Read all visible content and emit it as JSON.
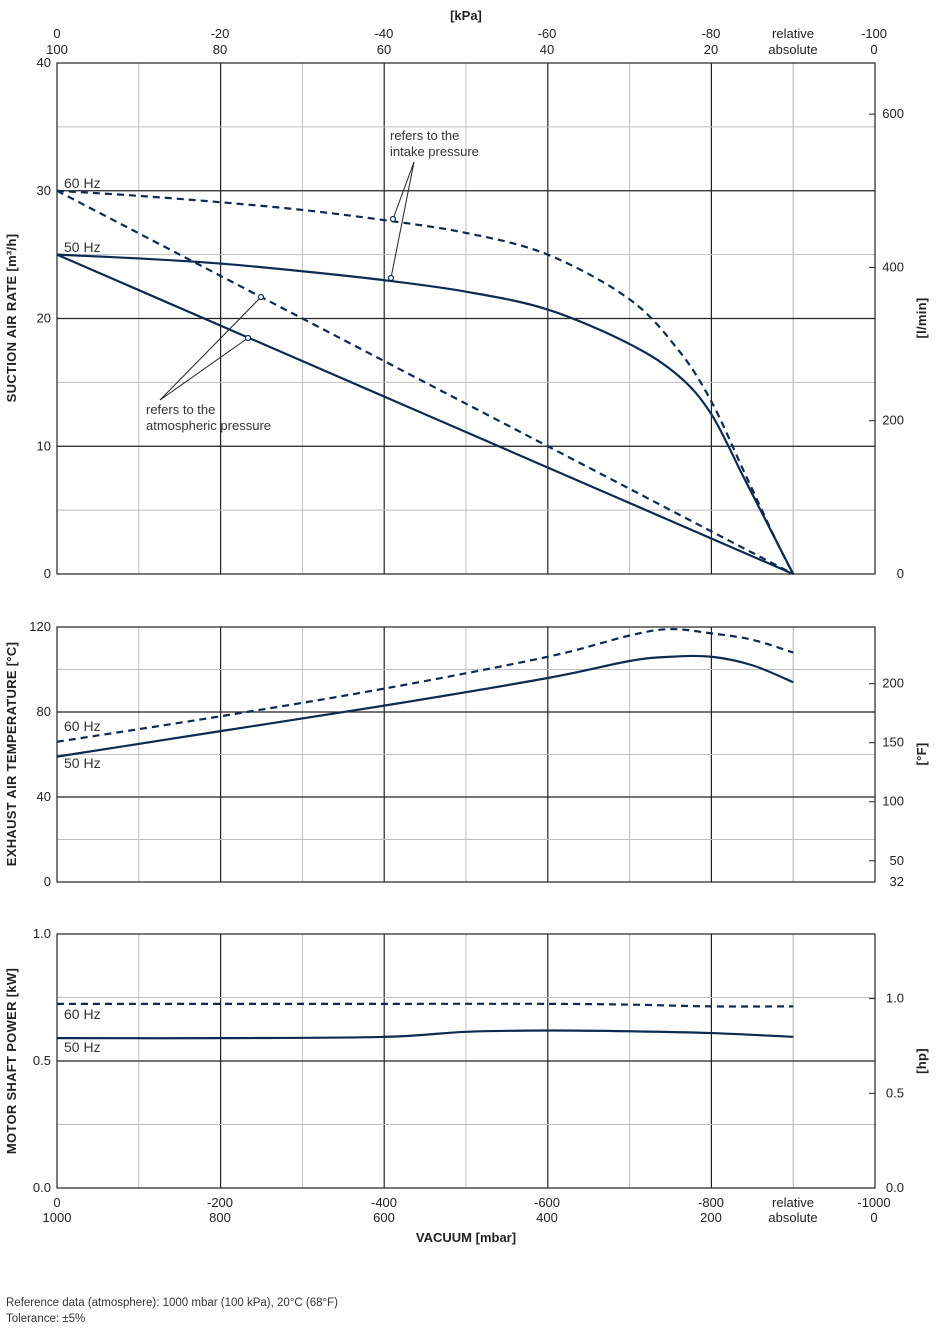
{
  "colors": {
    "curve": "#0d2b52",
    "grid_major": "#222222",
    "grid_minor": "#bfbfbf"
  },
  "top_axis": {
    "unit": "[kPa]",
    "relative_labels": [
      "0",
      "-20",
      "-40",
      "-60",
      "-80",
      "relative",
      "-100"
    ],
    "absolute_labels": [
      "100",
      "80",
      "60",
      "40",
      "20",
      "absolute",
      "0"
    ]
  },
  "bottom_axis": {
    "title": "VACUUM  [mbar]",
    "relative_labels": [
      "0",
      "-200",
      "-400",
      "-600",
      "-800",
      "relative",
      "-1000"
    ],
    "absolute_labels": [
      "1000",
      "800",
      "600",
      "400",
      "200",
      "absolute",
      "0"
    ]
  },
  "labels": {
    "hz60": "60 Hz",
    "hz50": "50 Hz"
  },
  "annotations": {
    "intake_1": "refers to the",
    "intake_2": "intake pressure",
    "atm_1": "refers to the",
    "atm_2": "atmospheric pressure"
  },
  "footer": {
    "reference": "Reference data (atmosphere): 1000 mbar (100 kPa), 20°C (68°F)",
    "tolerance": "Tolerance: ±5%"
  },
  "chart_data": [
    {
      "type": "line",
      "title": "Suction air rate",
      "xlabel": "VACUUM [mbar]",
      "ylabel": "SUCTION AIR RATE  [m³/h]",
      "y2label": "[l/min]",
      "xlim": [
        0,
        -1000
      ],
      "ylim": [
        0,
        40
      ],
      "yticks": [
        "0",
        "10",
        "20",
        "30",
        "40"
      ],
      "y2ticks": [
        {
          "value": 0,
          "label": "0"
        },
        {
          "value": 200,
          "label": "200"
        },
        {
          "value": 400,
          "label": "400"
        },
        {
          "value": 600,
          "label": "600"
        }
      ],
      "series": [
        {
          "name": "60 Hz (intake pressure)",
          "dashed": true,
          "x": [
            0,
            -100,
            -200,
            -300,
            -400,
            -500,
            -600,
            -700,
            -760,
            -800,
            -840,
            -880,
            -900
          ],
          "y": [
            30,
            29.6,
            29.1,
            28.5,
            27.7,
            26.7,
            25,
            21.5,
            17.5,
            13.5,
            8,
            2.5,
            0
          ]
        },
        {
          "name": "50 Hz (intake pressure)",
          "dashed": false,
          "x": [
            0,
            -100,
            -200,
            -300,
            -400,
            -500,
            -600,
            -700,
            -760,
            -800,
            -840,
            -880,
            -900
          ],
          "y": [
            25,
            24.7,
            24.3,
            23.7,
            23,
            22.1,
            20.7,
            18,
            15.5,
            12.5,
            7.5,
            2.5,
            0
          ]
        },
        {
          "name": "60 Hz (atmospheric pressure)",
          "dashed": true,
          "x": [
            0,
            -900
          ],
          "y": [
            30,
            0
          ]
        },
        {
          "name": "50 Hz (atmospheric pressure)",
          "dashed": false,
          "x": [
            0,
            -900
          ],
          "y": [
            25,
            0
          ]
        }
      ]
    },
    {
      "type": "line",
      "title": "Exhaust air temperature",
      "ylabel": "EXHAUST AIR TEMPERATURE  [°C]",
      "y2label": "[°F]",
      "xlim": [
        0,
        -1000
      ],
      "ylim": [
        0,
        120
      ],
      "yticks": [
        "0",
        "40",
        "80",
        "120"
      ],
      "y2ticks": [
        {
          "value": 32,
          "label": "32"
        },
        {
          "value": 50,
          "label": "50"
        },
        {
          "value": 100,
          "label": "100"
        },
        {
          "value": 150,
          "label": "150"
        },
        {
          "value": 200,
          "label": "200"
        }
      ],
      "series": [
        {
          "name": "60 Hz",
          "dashed": true,
          "x": [
            0,
            -200,
            -400,
            -600,
            -700,
            -750,
            -800,
            -850,
            -900
          ],
          "y": [
            66,
            78,
            91,
            106,
            116,
            119,
            117,
            114,
            108
          ]
        },
        {
          "name": "50 Hz",
          "dashed": false,
          "x": [
            0,
            -200,
            -400,
            -600,
            -700,
            -750,
            -800,
            -850,
            -900
          ],
          "y": [
            59,
            71,
            83,
            96,
            104,
            106,
            106,
            102,
            94
          ]
        }
      ]
    },
    {
      "type": "line",
      "title": "Motor shaft power",
      "ylabel": "MOTOR SHAFT POWER  [kW]",
      "y2label": "[hp]",
      "xlim": [
        0,
        -1000
      ],
      "ylim": [
        0,
        1.0
      ],
      "yticks": [
        "0.0",
        "0.5",
        "1.0"
      ],
      "y2ticks": [
        {
          "value": 0.0,
          "label": "0.0"
        },
        {
          "value": 0.5,
          "label": "0.5"
        },
        {
          "value": 1.0,
          "label": "1.0"
        }
      ],
      "series": [
        {
          "name": "60 Hz",
          "dashed": true,
          "x": [
            0,
            -200,
            -400,
            -600,
            -700,
            -800,
            -900
          ],
          "y": [
            0.725,
            0.725,
            0.725,
            0.725,
            0.722,
            0.715,
            0.715
          ]
        },
        {
          "name": "50 Hz",
          "dashed": false,
          "x": [
            0,
            -200,
            -400,
            -500,
            -600,
            -700,
            -800,
            -900
          ],
          "y": [
            0.59,
            0.59,
            0.595,
            0.615,
            0.62,
            0.617,
            0.61,
            0.595
          ]
        }
      ]
    }
  ]
}
